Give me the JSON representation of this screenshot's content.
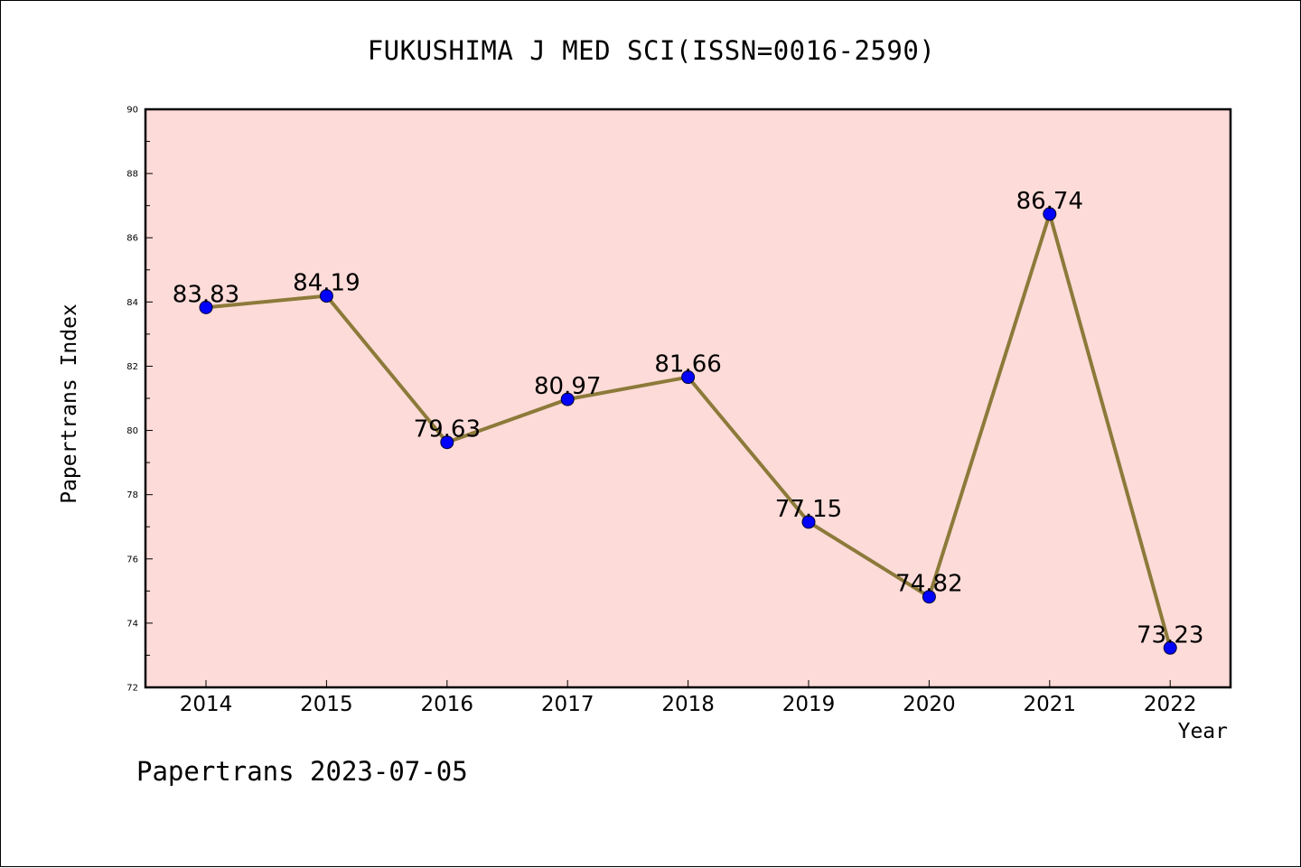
{
  "footer": "Papertrans 2023-07-05",
  "chart_data": {
    "type": "line",
    "title": "FUKUSHIMA J MED SCI(ISSN=0016-2590)",
    "xlabel": "Year",
    "ylabel": "Papertrans Index",
    "categories": [
      "2014",
      "2015",
      "2016",
      "2017",
      "2018",
      "2019",
      "2020",
      "2021",
      "2022"
    ],
    "values": [
      83.83,
      84.19,
      79.63,
      80.97,
      81.66,
      77.15,
      74.82,
      86.74,
      73.23
    ],
    "data_labels": [
      "83.83",
      "84.19",
      "79.63",
      "80.97",
      "81.66",
      "77.15",
      "74.82",
      "86.74",
      "73.23"
    ],
    "ylim": [
      72,
      90
    ],
    "yticks": [
      "72",
      "74",
      "76",
      "78",
      "80",
      "82",
      "84",
      "86",
      "88",
      "90"
    ],
    "grid": false,
    "colors": {
      "plot_background": "#fddbd8",
      "line": "#8c7a3a",
      "marker": "#0000ff"
    }
  }
}
